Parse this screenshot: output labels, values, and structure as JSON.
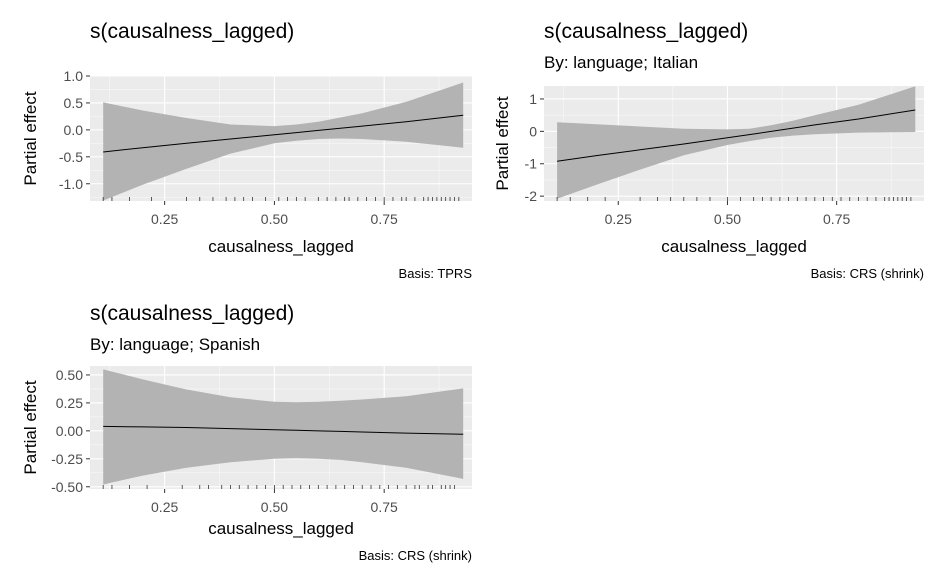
{
  "chart_data": [
    {
      "type": "line",
      "title": "s(causalness_lagged)",
      "subtitle": "",
      "xlabel": "causalness_lagged",
      "ylabel": "Partial effect",
      "caption": "Basis: TPRS",
      "xlim": [
        0.08,
        0.95
      ],
      "ylim": [
        -1.32,
        1.0
      ],
      "xticks": [
        0.25,
        0.5,
        0.75
      ],
      "xtick_labels": [
        "0.25",
        "0.50",
        "0.75"
      ],
      "yticks": [
        -1.0,
        -0.5,
        0.0,
        0.5,
        1.0
      ],
      "ytick_labels": [
        "-1.0",
        "-0.5",
        "0.0",
        "0.5",
        "1.0"
      ],
      "grid": true,
      "series": [
        {
          "x": [
            0.11,
            0.2,
            0.3,
            0.4,
            0.5,
            0.55,
            0.6,
            0.65,
            0.7,
            0.8,
            0.93
          ],
          "y": [
            -0.41,
            -0.33,
            -0.25,
            -0.17,
            -0.09,
            -0.05,
            -0.01,
            0.03,
            0.07,
            0.15,
            0.27
          ],
          "lower": [
            -1.31,
            -1.02,
            -0.72,
            -0.44,
            -0.25,
            -0.2,
            -0.17,
            -0.16,
            -0.17,
            -0.22,
            -0.33
          ],
          "upper": [
            0.51,
            0.36,
            0.22,
            0.1,
            0.07,
            0.1,
            0.15,
            0.23,
            0.31,
            0.52,
            0.88
          ]
        }
      ],
      "rug": [
        0.11,
        0.13,
        0.17,
        0.22,
        0.3,
        0.33,
        0.36,
        0.39,
        0.41,
        0.43,
        0.45,
        0.48,
        0.51,
        0.53,
        0.55,
        0.57,
        0.6,
        0.62,
        0.64,
        0.66,
        0.67,
        0.69,
        0.71,
        0.73,
        0.75,
        0.77,
        0.79,
        0.8,
        0.82,
        0.84,
        0.85,
        0.86,
        0.87,
        0.88,
        0.89,
        0.9,
        0.91,
        0.92
      ]
    },
    {
      "type": "line",
      "title": "s(causalness_lagged)",
      "subtitle": "By: language; Italian",
      "xlabel": "causalness_lagged",
      "ylabel": "Partial effect",
      "caption": "Basis: CRS (shrink)",
      "xlim": [
        0.08,
        0.95
      ],
      "ylim": [
        -2.15,
        1.4
      ],
      "xticks": [
        0.25,
        0.5,
        0.75
      ],
      "xtick_labels": [
        "0.25",
        "0.50",
        "0.75"
      ],
      "yticks": [
        -2,
        -1,
        0,
        1
      ],
      "ytick_labels": [
        "-2",
        "-1",
        "0",
        "1"
      ],
      "grid": true,
      "series": [
        {
          "x": [
            0.11,
            0.2,
            0.3,
            0.4,
            0.5,
            0.55,
            0.6,
            0.65,
            0.7,
            0.8,
            0.93
          ],
          "y": [
            -0.92,
            -0.75,
            -0.57,
            -0.39,
            -0.2,
            -0.1,
            0.0,
            0.1,
            0.2,
            0.38,
            0.66
          ],
          "lower": [
            -2.08,
            -1.65,
            -1.18,
            -0.74,
            -0.42,
            -0.3,
            -0.2,
            -0.13,
            -0.09,
            -0.04,
            -0.02
          ],
          "upper": [
            0.28,
            0.22,
            0.15,
            0.08,
            0.06,
            0.08,
            0.19,
            0.33,
            0.5,
            0.82,
            1.39
          ]
        }
      ],
      "rug": [
        0.11,
        0.14,
        0.18,
        0.22,
        0.3,
        0.34,
        0.37,
        0.4,
        0.43,
        0.46,
        0.5,
        0.53,
        0.56,
        0.58,
        0.6,
        0.62,
        0.64,
        0.66,
        0.68,
        0.7,
        0.72,
        0.74,
        0.76,
        0.78,
        0.8,
        0.82,
        0.84,
        0.86,
        0.87,
        0.88,
        0.89,
        0.9,
        0.91,
        0.92
      ]
    },
    {
      "type": "line",
      "title": "s(causalness_lagged)",
      "subtitle": "By: language; Spanish",
      "xlabel": "causalness_lagged",
      "ylabel": "Partial effect",
      "caption": "Basis: CRS (shrink)",
      "xlim": [
        0.08,
        0.95
      ],
      "ylim": [
        -0.52,
        0.58
      ],
      "xticks": [
        0.25,
        0.5,
        0.75
      ],
      "xtick_labels": [
        "0.25",
        "0.50",
        "0.75"
      ],
      "yticks": [
        -0.5,
        -0.25,
        0.0,
        0.25,
        0.5
      ],
      "ytick_labels": [
        "-0.50",
        "-0.25",
        "0.00",
        "0.25",
        "0.50"
      ],
      "grid": true,
      "series": [
        {
          "x": [
            0.11,
            0.2,
            0.3,
            0.4,
            0.5,
            0.55,
            0.6,
            0.65,
            0.7,
            0.8,
            0.93
          ],
          "y": [
            0.04,
            0.035,
            0.03,
            0.02,
            0.01,
            0.005,
            0.0,
            -0.005,
            -0.01,
            -0.02,
            -0.03
          ],
          "lower": [
            -0.48,
            -0.4,
            -0.33,
            -0.28,
            -0.25,
            -0.245,
            -0.25,
            -0.26,
            -0.28,
            -0.33,
            -0.43
          ],
          "upper": [
            0.55,
            0.46,
            0.37,
            0.3,
            0.26,
            0.255,
            0.26,
            0.27,
            0.28,
            0.31,
            0.38
          ]
        }
      ],
      "rug": [
        0.11,
        0.13,
        0.17,
        0.21,
        0.29,
        0.33,
        0.35,
        0.38,
        0.4,
        0.42,
        0.44,
        0.46,
        0.48,
        0.5,
        0.52,
        0.54,
        0.56,
        0.58,
        0.6,
        0.62,
        0.64,
        0.66,
        0.68,
        0.7,
        0.72,
        0.74,
        0.76,
        0.78,
        0.8,
        0.82,
        0.83,
        0.85,
        0.86,
        0.88,
        0.89,
        0.9,
        0.91
      ]
    }
  ]
}
